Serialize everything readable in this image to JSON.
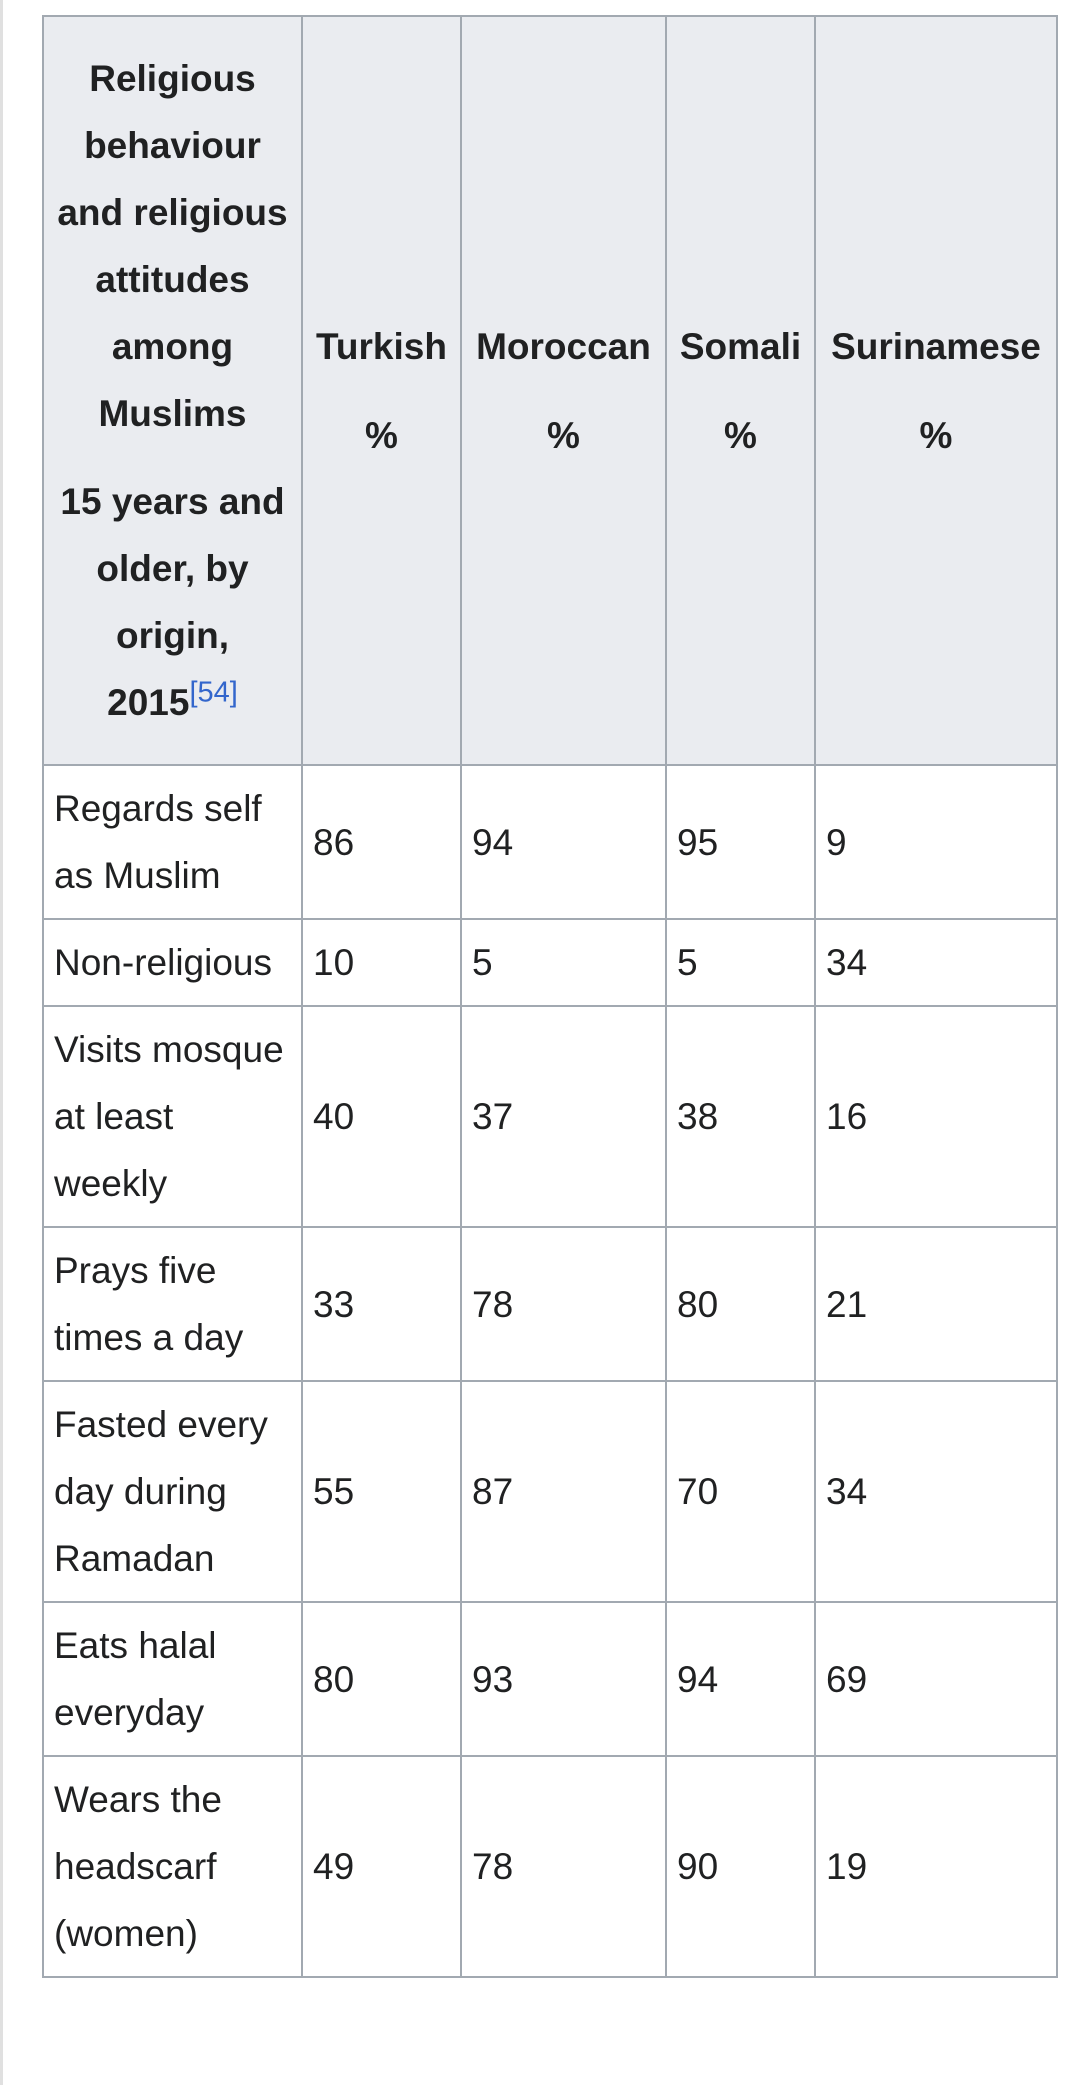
{
  "header": {
    "title": "Religious behaviour and religious attitudes among Muslims",
    "subtitle": "15 years and older, by origin, 2015",
    "ref": "[54]"
  },
  "columns": [
    {
      "name": "Turkish",
      "unit": "%"
    },
    {
      "name": "Moroccan",
      "unit": "%"
    },
    {
      "name": "Somali",
      "unit": "%"
    },
    {
      "name": "Surinamese",
      "unit": "%"
    }
  ],
  "rows": [
    {
      "label": "Regards self as Muslim",
      "values": [
        86,
        94,
        95,
        9
      ]
    },
    {
      "label": "Non-religious",
      "values": [
        10,
        5,
        5,
        34
      ]
    },
    {
      "label": "Visits mosque at least weekly",
      "values": [
        40,
        37,
        38,
        16
      ]
    },
    {
      "label": "Prays five times a day",
      "values": [
        33,
        78,
        80,
        21
      ]
    },
    {
      "label": "Fasted every day during Ramadan",
      "values": [
        55,
        87,
        70,
        34
      ]
    },
    {
      "label": "Eats halal everyday",
      "values": [
        80,
        93,
        94,
        69
      ]
    },
    {
      "label": "Wears the headscarf (women)",
      "values": [
        49,
        78,
        90,
        19
      ]
    }
  ]
}
